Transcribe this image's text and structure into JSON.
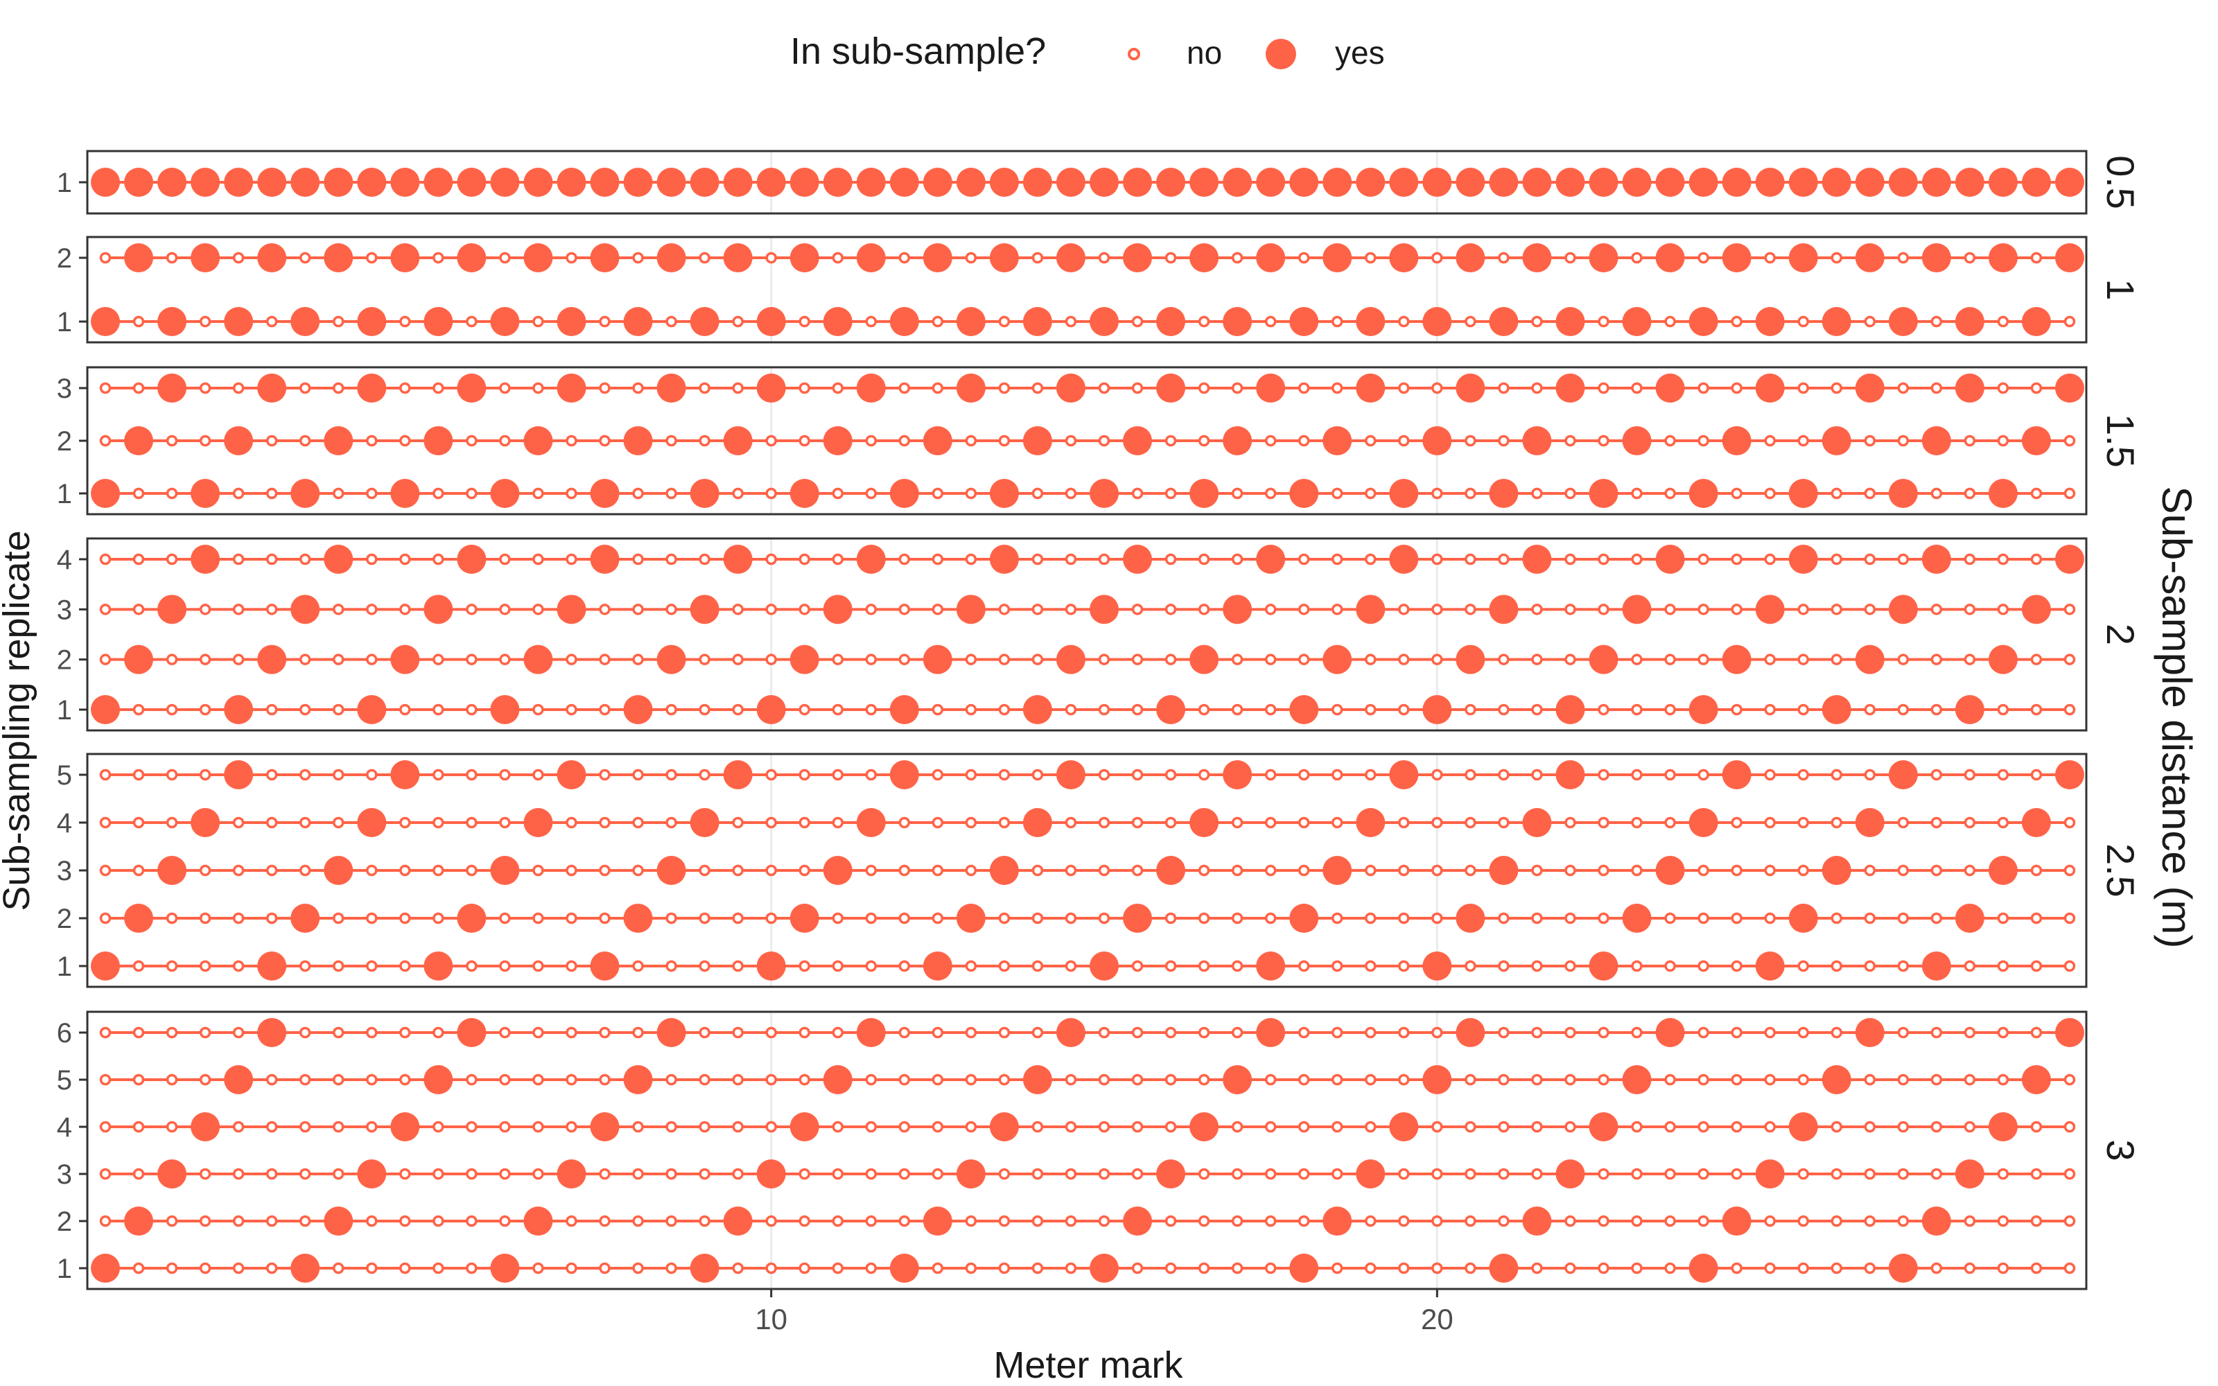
{
  "chart_data": {
    "type": "scatter",
    "xlabel": "Meter mark",
    "ylabel": "Sub-sampling replicate",
    "facet_label": "Sub-sample distance (m)",
    "x_range": [
      0,
      29.5
    ],
    "x_step": 0.5,
    "x_ticks": [
      10,
      20
    ],
    "x_tick_labels": [
      "10",
      "20"
    ],
    "grid": true,
    "legend": {
      "title": "In sub-sample?",
      "position": "top",
      "entries": [
        {
          "key": "no",
          "label": "no"
        },
        {
          "key": "yes",
          "label": "yes"
        }
      ]
    },
    "facets": [
      {
        "label": "0.5",
        "distance": 0.5,
        "replicates": [
          "1"
        ]
      },
      {
        "label": "1",
        "distance": 1,
        "replicates": [
          "1",
          "2"
        ]
      },
      {
        "label": "1.5",
        "distance": 1.5,
        "replicates": [
          "1",
          "2",
          "3"
        ]
      },
      {
        "label": "2",
        "distance": 2,
        "replicates": [
          "1",
          "2",
          "3",
          "4"
        ]
      },
      {
        "label": "2.5",
        "distance": 2.5,
        "replicates": [
          "1",
          "2",
          "3",
          "4",
          "5"
        ]
      },
      {
        "label": "3",
        "distance": 3,
        "replicates": [
          "1",
          "2",
          "3",
          "4",
          "5",
          "6"
        ]
      }
    ],
    "rule": "Replicate r of distance d includes meter marks x where (x - 0.5*(r-1)) is a non-negative multiple of d",
    "colors": {
      "point": "#ff6347",
      "line": "#ff6347",
      "panel_border": "#333333",
      "grid": "#ebebeb"
    }
  }
}
